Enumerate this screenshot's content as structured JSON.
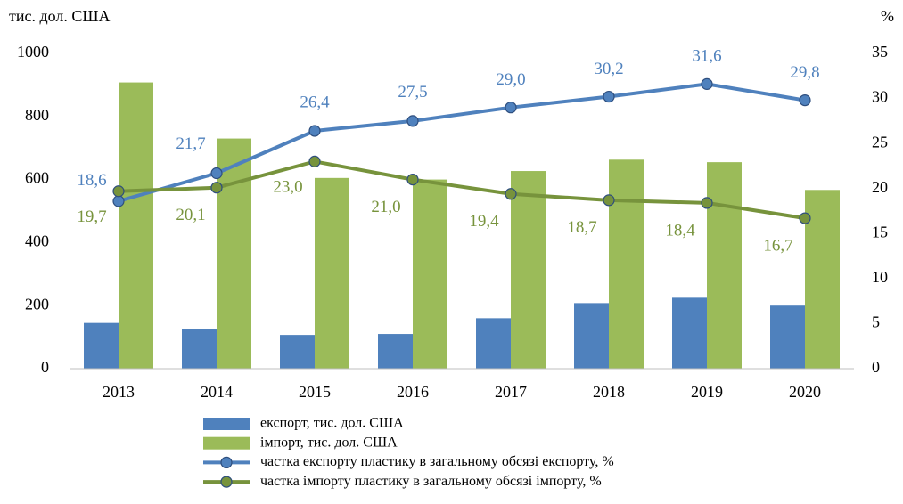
{
  "chart_data": {
    "type": "bar_line",
    "y_axis_label": "тис. дол. США",
    "y2_axis_label": "%",
    "categories": [
      "2013",
      "2014",
      "2015",
      "2016",
      "2017",
      "2018",
      "2019",
      "2020"
    ],
    "ylim": [
      0,
      1000
    ],
    "yticks": [
      0,
      200,
      400,
      600,
      800,
      1000
    ],
    "y2lim": [
      0,
      35
    ],
    "y2ticks": [
      0,
      5,
      10,
      15,
      20,
      25,
      30,
      35
    ],
    "series": [
      {
        "name": "експорт, тис. дол. США",
        "type": "bar",
        "color": "#4f81bd",
        "values": [
          145,
          125,
          107,
          110,
          160,
          208,
          225,
          200
        ]
      },
      {
        "name": "імпорт, тис. дол. США",
        "type": "bar",
        "color": "#9bbb59",
        "values": [
          908,
          730,
          605,
          600,
          627,
          663,
          655,
          567
        ]
      },
      {
        "name": "частка експорту пластику в загальному обсязі експорту, %",
        "type": "line",
        "axis": "y2",
        "color": "#4f81bd",
        "values": [
          18.6,
          21.7,
          26.4,
          27.5,
          29.0,
          30.2,
          31.6,
          29.8
        ],
        "value_labels": [
          "18,6",
          "21,7",
          "26,4",
          "27,5",
          "29,0",
          "30,2",
          "31,6",
          "29,8"
        ]
      },
      {
        "name": "частка імпорту пластику в загальному обсязі імпорту, %",
        "type": "line",
        "axis": "y2",
        "color": "#77933c",
        "values": [
          19.7,
          20.1,
          23.0,
          21.0,
          19.4,
          18.7,
          18.4,
          16.7
        ],
        "value_labels": [
          "19,7",
          "20,1",
          "23,0",
          "21,0",
          "19,4",
          "18,7",
          "18,4",
          "16,7"
        ]
      }
    ]
  }
}
